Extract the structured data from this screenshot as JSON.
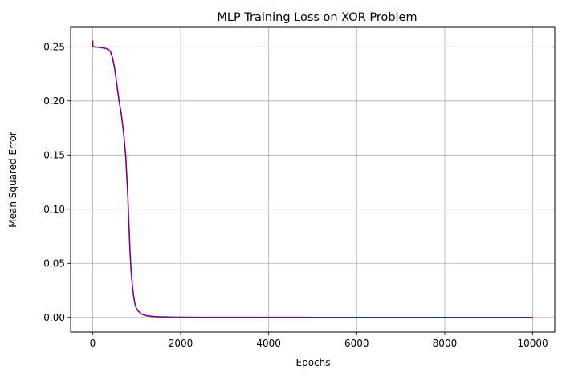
{
  "chart_data": {
    "type": "line",
    "title": "MLP Training Loss on XOR Problem",
    "xlabel": "Epochs",
    "ylabel": "Mean Squared Error",
    "xlim": [
      -500,
      10500
    ],
    "ylim": [
      -0.0135,
      0.268
    ],
    "xticks": [
      0,
      2000,
      4000,
      6000,
      8000,
      10000
    ],
    "yticks": [
      0.0,
      0.05,
      0.1,
      0.15,
      0.2,
      0.25
    ],
    "xtick_labels": [
      "0",
      "2000",
      "4000",
      "6000",
      "8000",
      "10000"
    ],
    "ytick_labels": [
      "0.00",
      "0.05",
      "0.10",
      "0.15",
      "0.20",
      "0.25"
    ],
    "grid": true,
    "series": [
      {
        "color": "#800080",
        "x": [
          0,
          5,
          20,
          100,
          200,
          300,
          350,
          400,
          450,
          500,
          550,
          600,
          650,
          700,
          750,
          800,
          820,
          850,
          870,
          890,
          910,
          930,
          950,
          970,
          1000,
          1030,
          1060,
          1100,
          1150,
          1200,
          1300,
          1400,
          1500,
          1600,
          1800,
          2000,
          2500,
          3000,
          4000,
          5000,
          6000,
          7000,
          8000,
          9000,
          10000
        ],
        "y": [
          0.256,
          0.251,
          0.25,
          0.2498,
          0.2492,
          0.2485,
          0.2478,
          0.246,
          0.24,
          0.23,
          0.215,
          0.2,
          0.188,
          0.172,
          0.15,
          0.112,
          0.09,
          0.06,
          0.046,
          0.035,
          0.027,
          0.02,
          0.015,
          0.011,
          0.008,
          0.0063,
          0.005,
          0.0035,
          0.0025,
          0.0018,
          0.0012,
          0.0008,
          0.0006,
          0.0005,
          0.0003,
          0.0002,
          0.0001,
          8e-05,
          5e-05,
          3e-05,
          2e-05,
          1e-05,
          1e-05,
          1e-05,
          1e-05
        ]
      }
    ]
  }
}
